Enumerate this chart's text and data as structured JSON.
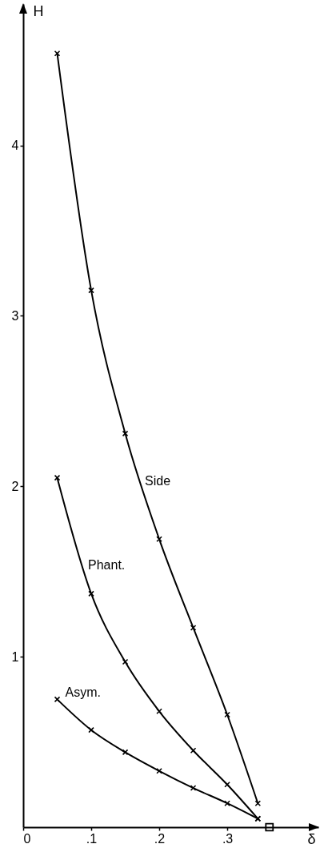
{
  "chart_data": {
    "type": "line",
    "xlabel": "δ",
    "ylabel": "H",
    "xlim": [
      0,
      0.434
    ],
    "ylim": [
      0,
      4.83
    ],
    "xticks": [
      {
        "value": 0,
        "label": "0"
      },
      {
        "value": 0.1,
        "label": ".1"
      },
      {
        "value": 0.2,
        "label": ".2"
      },
      {
        "value": 0.3,
        "label": ".3"
      }
    ],
    "yticks": [
      1,
      2,
      3,
      4
    ],
    "marker": "cross",
    "line_style": "solid",
    "x": [
      0.05,
      0.1,
      0.15,
      0.2,
      0.25,
      0.3,
      0.345
    ],
    "series": [
      {
        "name": "Side",
        "color": "#000000",
        "values": [
          4.54,
          3.15,
          2.31,
          1.69,
          1.17,
          0.66,
          0.14
        ]
      },
      {
        "name": "Phant.",
        "color": "#000000",
        "values": [
          2.05,
          1.37,
          0.97,
          0.68,
          0.45,
          0.25,
          0.05
        ]
      },
      {
        "name": "Asym.",
        "color": "#000000",
        "values": [
          0.75,
          0.57,
          0.44,
          0.33,
          0.23,
          0.14,
          0.05
        ]
      },
      {
        "type": "scatter",
        "marker": "square",
        "color": "#000000",
        "x": [
          0.362
        ],
        "values": [
          0
        ]
      }
    ]
  }
}
